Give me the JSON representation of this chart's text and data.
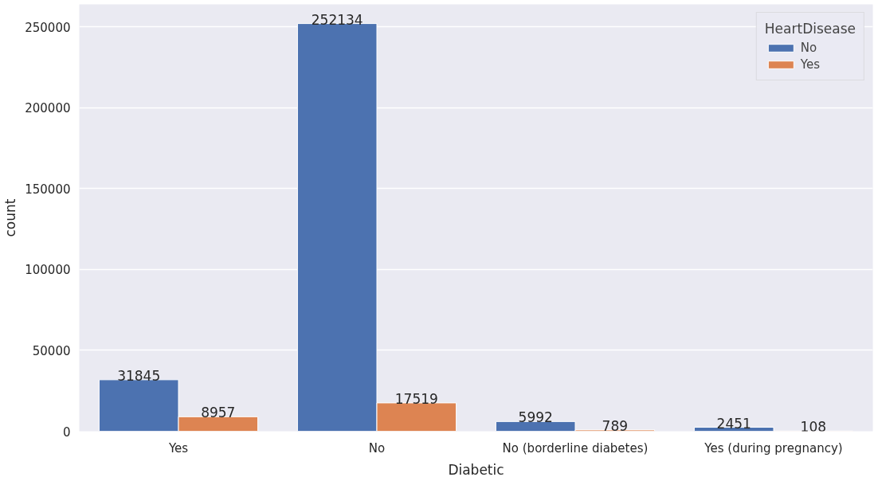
{
  "chart_data": {
    "type": "bar",
    "xlabel": "Diabetic",
    "ylabel": "count",
    "legend_title": "HeartDisease",
    "categories": [
      "Yes",
      "No",
      "No (borderline diabetes)",
      "Yes (during pregnancy)"
    ],
    "series": [
      {
        "name": "No",
        "color": "#4c72b0",
        "values": [
          31845,
          252134,
          5992,
          2451
        ]
      },
      {
        "name": "Yes",
        "color": "#dd8452",
        "values": [
          8957,
          17519,
          789,
          108
        ]
      }
    ],
    "ylim": [
      0,
      264000
    ],
    "yticks": [
      0,
      50000,
      100000,
      150000,
      200000,
      250000
    ],
    "grid": "y",
    "legend": "top right",
    "data_labels": true
  }
}
